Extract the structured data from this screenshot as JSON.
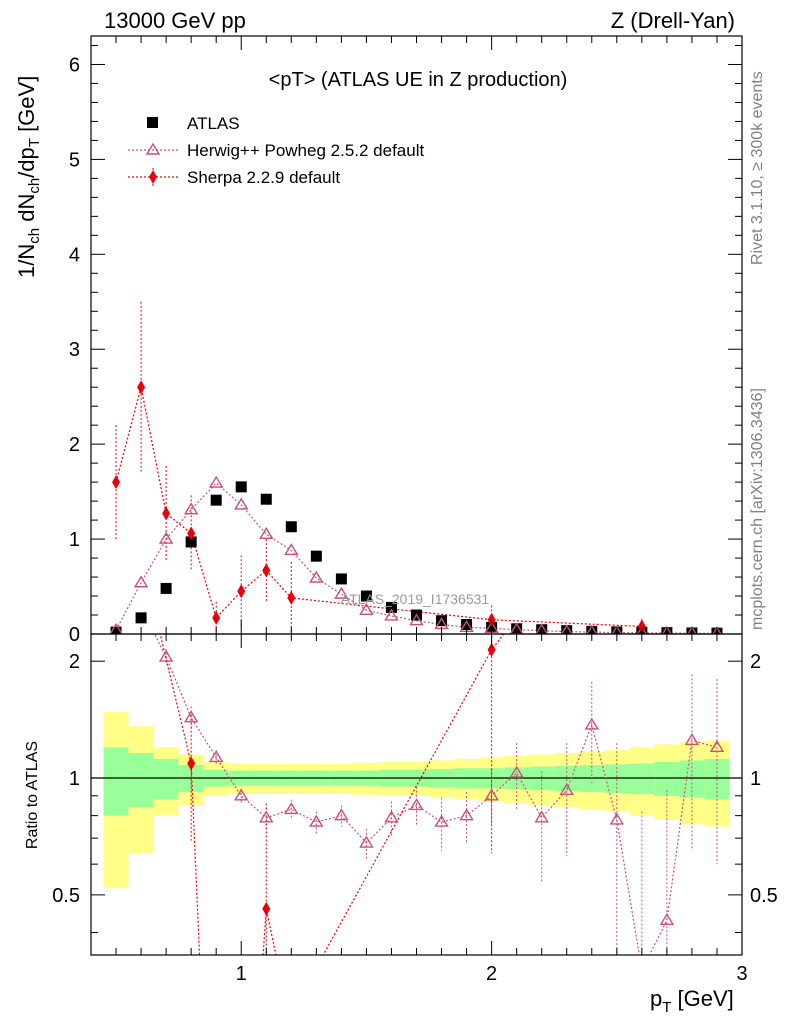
{
  "header": {
    "left": "13000 GeV pp",
    "right": "Z (Drell-Yan)"
  },
  "side_text": {
    "rivet": "Rivet 3.1.10, ≥ 300k events",
    "mcplots": "mcplots.cern.ch [arXiv:1306.3436]"
  },
  "chart_data": {
    "type": "scatter",
    "title": "<pT> (ATLAS UE in Z production)",
    "analysis_label": "ATLAS_2019_I1736531",
    "xlabel": "p_T [GeV]",
    "ylabel": "1/N_ch dN_ch/dp_T [GeV]",
    "ratio_ylabel": "Ratio to ATLAS",
    "xlim": [
      0.4,
      3.0
    ],
    "ylim": [
      0,
      6.3
    ],
    "ratio_ylim": [
      0.35,
      2.35
    ],
    "x_ticks": [
      "1",
      "2",
      "3"
    ],
    "y_ticks": [
      "0",
      "1",
      "2",
      "3",
      "4",
      "5",
      "6"
    ],
    "ratio_y_ticks": [
      "0.5",
      "1",
      "2"
    ],
    "legend": [
      {
        "label": "ATLAS",
        "marker": "square",
        "color": "#000000"
      },
      {
        "label": "Herwig++ Powheg 2.5.2 default",
        "marker": "open-triangle",
        "color": "#c8507a"
      },
      {
        "label": "Sherpa 2.2.9 default",
        "marker": "diamond",
        "color": "#e8000b"
      }
    ],
    "colors": {
      "data": "#000000",
      "herwig": "#c8507a",
      "sherpa": "#e8000b",
      "band_inner": "#99ff99",
      "band_outer": "#ffff88"
    },
    "x": [
      0.5,
      0.6,
      0.7,
      0.8,
      0.9,
      1.0,
      1.1,
      1.2,
      1.3,
      1.4,
      1.5,
      1.6,
      1.7,
      1.8,
      1.9,
      2.0,
      2.1,
      2.2,
      2.3,
      2.4,
      2.5,
      2.6,
      2.7,
      2.8,
      2.9
    ],
    "series": [
      {
        "name": "ATLAS",
        "values": [
          0.02,
          0.17,
          0.48,
          0.97,
          1.41,
          1.55,
          1.42,
          1.13,
          0.82,
          0.58,
          0.4,
          0.28,
          0.2,
          0.14,
          0.1,
          0.07,
          0.055,
          0.045,
          0.035,
          0.028,
          0.022,
          0.018,
          0.014,
          0.011,
          0.009
        ]
      },
      {
        "name": "Herwig++ Powheg 2.5.2 default",
        "values": [
          0.04,
          0.54,
          1.0,
          1.31,
          1.59,
          1.36,
          1.05,
          0.88,
          0.59,
          0.42,
          0.25,
          0.19,
          0.14,
          0.1,
          0.07,
          0.06,
          0.045,
          0.035,
          0.025,
          0.02,
          0.015,
          0.012,
          0.01,
          0.008,
          0.006
        ],
        "errors": [
          0.02,
          0.05,
          0.06,
          0.07,
          0.07,
          0.07,
          0.06,
          0.05,
          0.04,
          0.03,
          0.03,
          0.02,
          0.02,
          0.015,
          0.012,
          0.01,
          0.01,
          0.008,
          0.006,
          0.005,
          0.005,
          0.004,
          0.004,
          0.003,
          0.003
        ]
      },
      {
        "name": "Sherpa 2.2.9 default",
        "values": [
          1.6,
          2.6,
          1.27,
          1.06,
          0.17,
          0.45,
          0.67,
          0.38,
          null,
          null,
          null,
          null,
          null,
          null,
          null,
          0.15,
          null,
          null,
          null,
          null,
          null,
          0.08,
          null,
          null,
          null
        ],
        "errors": [
          0.6,
          0.9,
          0.5,
          0.4,
          0.17,
          0.38,
          0.33,
          0.38,
          null,
          null,
          null,
          null,
          null,
          null,
          null,
          0.15,
          null,
          null,
          null,
          null,
          null,
          0.08,
          null,
          null,
          null
        ]
      }
    ],
    "ratio": {
      "herwig": [
        null,
        null,
        2.05,
        1.43,
        1.13,
        0.9,
        0.79,
        0.83,
        0.77,
        0.8,
        0.68,
        0.79,
        0.85,
        0.77,
        0.8,
        0.9,
        1.03,
        0.79,
        0.93,
        1.37,
        0.78,
        0.32,
        0.43,
        1.25,
        1.2
      ],
      "herwig_errors": [
        null,
        null,
        0.1,
        0.1,
        0.05,
        0.04,
        0.05,
        0.05,
        0.05,
        0.05,
        0.06,
        0.08,
        0.1,
        0.12,
        0.12,
        0.15,
        0.2,
        0.25,
        0.3,
        0.4,
        0.45,
        0.5,
        0.5,
        0.6,
        0.6
      ],
      "sherpa": [
        null,
        null,
        null,
        1.09,
        null,
        null,
        0.46,
        null,
        null,
        null,
        null,
        null,
        null,
        null,
        null,
        2.14,
        null,
        null,
        null,
        null,
        null,
        null,
        null,
        null,
        null
      ],
      "sherpa_errors": [
        null,
        null,
        null,
        0.4,
        null,
        null,
        0.4,
        null,
        null,
        null,
        null,
        null,
        null,
        null,
        null,
        1.5,
        null,
        null,
        null,
        null,
        null,
        null,
        null,
        null,
        null
      ],
      "band_x_edges": [
        0.45,
        0.55,
        0.65,
        0.75,
        0.85,
        0.95,
        1.05,
        1.15,
        1.25,
        1.35,
        1.45,
        1.55,
        1.65,
        1.75,
        1.85,
        1.95,
        2.05,
        2.15,
        2.25,
        2.35,
        2.45,
        2.55,
        2.65,
        2.75,
        2.85,
        2.95
      ],
      "band_inner": [
        0.2,
        0.16,
        0.12,
        0.08,
        0.05,
        0.045,
        0.045,
        0.045,
        0.045,
        0.045,
        0.045,
        0.05,
        0.05,
        0.055,
        0.06,
        0.06,
        0.065,
        0.07,
        0.075,
        0.08,
        0.085,
        0.09,
        0.1,
        0.11,
        0.12
      ],
      "band_outer": [
        0.48,
        0.36,
        0.2,
        0.15,
        0.1,
        0.09,
        0.09,
        0.09,
        0.09,
        0.09,
        0.095,
        0.1,
        0.1,
        0.11,
        0.12,
        0.13,
        0.14,
        0.15,
        0.16,
        0.17,
        0.18,
        0.2,
        0.22,
        0.24,
        0.25
      ]
    }
  }
}
